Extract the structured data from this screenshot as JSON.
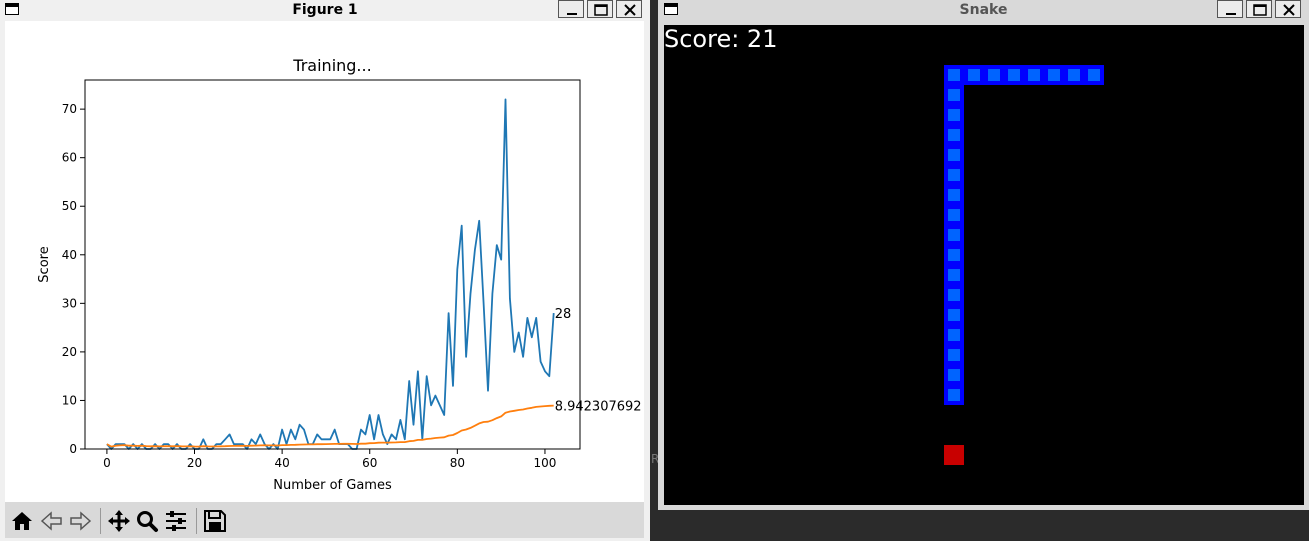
{
  "figure_window": {
    "title": "Figure 1",
    "toolbar": {
      "home": "home-icon",
      "back": "back-arrow-icon",
      "forward": "forward-arrow-icon",
      "pan": "pan-icon",
      "zoom": "zoom-icon",
      "configure": "configure-subplots-icon",
      "save": "save-icon"
    }
  },
  "chart_data": {
    "type": "line",
    "title": "Training...",
    "xlabel": "Number of Games",
    "ylabel": "Score",
    "xlim": [
      -5,
      108
    ],
    "ylim": [
      0,
      76
    ],
    "xticks": [
      0,
      20,
      40,
      60,
      80,
      100
    ],
    "yticks": [
      0,
      10,
      20,
      30,
      40,
      50,
      60,
      70
    ],
    "grid": false,
    "colors": {
      "scores": "#1f77b4",
      "mean": "#ff7f0e"
    },
    "series": [
      {
        "values": [
          1,
          0,
          1,
          1,
          1,
          0,
          1,
          0,
          1,
          0,
          0,
          1,
          0,
          1,
          1,
          0,
          1,
          0,
          0,
          1,
          0,
          0,
          2,
          0,
          0,
          1,
          1,
          2,
          3,
          1,
          1,
          1,
          0,
          2,
          1,
          3,
          1,
          0,
          1,
          0,
          4,
          1,
          4,
          2,
          5,
          4,
          1,
          1,
          3,
          2,
          2,
          2,
          4,
          1,
          1,
          1,
          0,
          0,
          4,
          3,
          7,
          2,
          7,
          3,
          1,
          3,
          2,
          6,
          2,
          14,
          5,
          16,
          2,
          15,
          9,
          11,
          9,
          7,
          28,
          13,
          37,
          46,
          19,
          32,
          41,
          47,
          30,
          12,
          32,
          42,
          39,
          72,
          31,
          20,
          24,
          19,
          27,
          23,
          27,
          18,
          16,
          15,
          28
        ],
        "end_label": "28"
      },
      {
        "values": [
          1,
          0.5,
          0.67,
          0.75,
          0.8,
          0.67,
          0.71,
          0.63,
          0.67,
          0.6,
          0.55,
          0.58,
          0.54,
          0.57,
          0.6,
          0.56,
          0.59,
          0.56,
          0.53,
          0.55,
          0.52,
          0.5,
          0.57,
          0.54,
          0.52,
          0.54,
          0.56,
          0.57,
          0.62,
          0.63,
          0.65,
          0.66,
          0.64,
          0.68,
          0.69,
          0.75,
          0.76,
          0.74,
          0.74,
          0.73,
          0.8,
          0.8,
          0.84,
          0.86,
          0.91,
          0.93,
          0.94,
          0.94,
          0.98,
          0.98,
          1,
          1.02,
          1.06,
          1.06,
          1.07,
          1.07,
          1.05,
          1.04,
          1.09,
          1.1,
          1.2,
          1.21,
          1.3,
          1.32,
          1.32,
          1.34,
          1.36,
          1.43,
          1.43,
          1.61,
          1.66,
          1.87,
          1.87,
          2.05,
          2.15,
          2.26,
          2.35,
          2.41,
          2.75,
          2.88,
          3.3,
          3.82,
          4.01,
          4.35,
          4.79,
          5.28,
          5.56,
          5.63,
          5.94,
          6.36,
          6.72,
          7.48,
          7.73,
          7.86,
          8.03,
          8.14,
          8.34,
          8.49,
          8.67,
          8.76,
          8.84,
          8.9,
          8.94
        ],
        "end_label": "8.942307692"
      }
    ]
  },
  "snake_window": {
    "title": "Snake",
    "score_text": "Score: 21",
    "snake_color": "#0000ff",
    "snake_inner_color": "#0064ff",
    "food_color": "#c80000",
    "background": "#000000",
    "cell_size": 20,
    "snake_cells": [
      [
        14,
        2
      ],
      [
        15,
        2
      ],
      [
        16,
        2
      ],
      [
        17,
        2
      ],
      [
        18,
        2
      ],
      [
        19,
        2
      ],
      [
        20,
        2
      ],
      [
        21,
        2
      ],
      [
        14,
        3
      ],
      [
        14,
        4
      ],
      [
        14,
        5
      ],
      [
        14,
        6
      ],
      [
        14,
        7
      ],
      [
        14,
        8
      ],
      [
        14,
        9
      ],
      [
        14,
        10
      ],
      [
        14,
        11
      ],
      [
        14,
        12
      ],
      [
        14,
        13
      ],
      [
        14,
        14
      ],
      [
        14,
        15
      ],
      [
        14,
        16
      ],
      [
        14,
        17
      ],
      [
        14,
        18
      ]
    ],
    "food_cell": [
      14,
      21
    ]
  },
  "background_text": "RN"
}
